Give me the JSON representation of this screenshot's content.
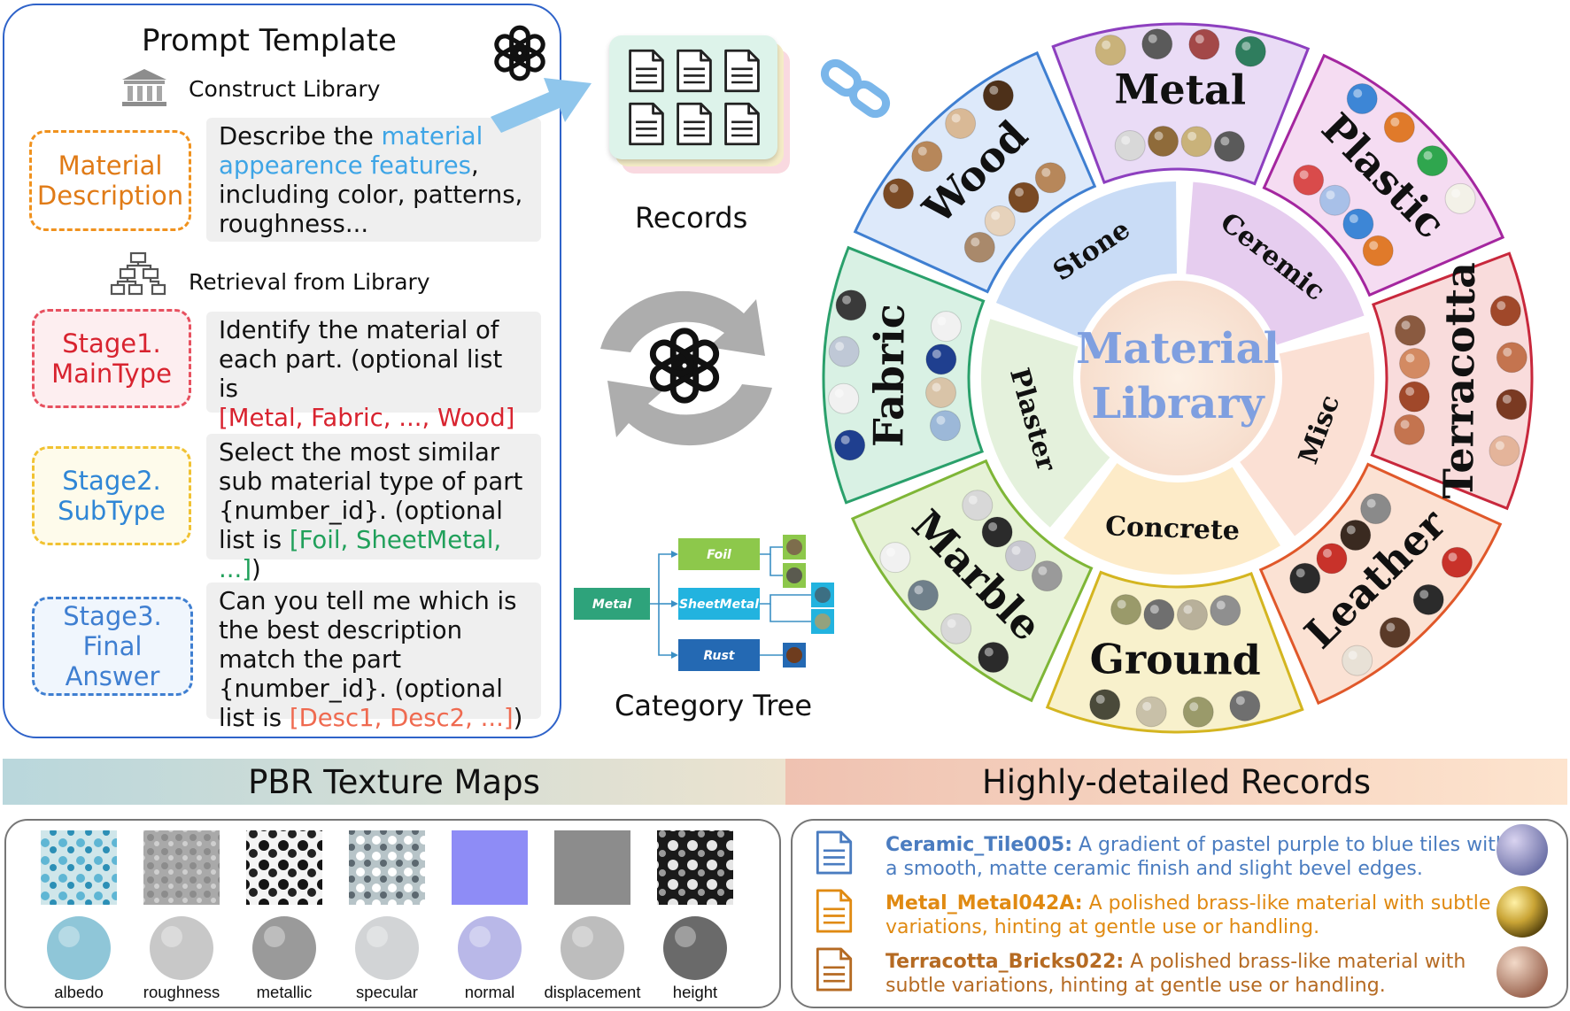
{
  "prompt_template": {
    "title": "Prompt Template",
    "construct_label": "Construct Library",
    "retrieval_label": "Retrieval from Library",
    "material_description": {
      "label": "Material\nDescription",
      "text_before": "Describe the ",
      "highlight": "material appearence features",
      "text_after": ", including color, patterns, roughness..."
    },
    "stage1": {
      "label": "Stage1.\nMainType",
      "text": "Identify the material of each part. (optional list is",
      "highlight": "[Metal, Fabric, ..., Wood]"
    },
    "stage2": {
      "label": "Stage2.\nSubType",
      "text": "Select the most similar sub material type of part {number_id}. (optional list is ",
      "highlight": "[Foil, SheetMetal, ...]",
      "text_after": ")"
    },
    "stage3": {
      "label": "Stage3.\nFinal Answer",
      "text": "Can you tell me which is the best description match the part {number_id}. (optional list is ",
      "highlight": "[Desc1, Desc2, ...]",
      "text_after": ")"
    }
  },
  "records": {
    "label": "Records"
  },
  "category_tree": {
    "label": "Category Tree",
    "root": "Metal",
    "children": [
      "Foil",
      "SheetMetal",
      "Rust"
    ]
  },
  "material_library": {
    "center_title_line1": "Material",
    "center_title_line2": "Library",
    "inner_categories": [
      "Stone",
      "Ceremic",
      "Misc",
      "Concrete",
      "Plaster"
    ],
    "outer_categories": [
      "Wood",
      "Metal",
      "Plastic",
      "Terracotta",
      "Leather",
      "Ground",
      "Marble",
      "Fabric"
    ]
  },
  "pbr": {
    "title": "PBR Texture Maps",
    "maps": [
      "albedo",
      "roughness",
      "metallic",
      "specular",
      "normal",
      "displacement",
      "height"
    ]
  },
  "detailed_records": {
    "title": "Highly-detailed Records",
    "items": [
      {
        "name": "Ceramic_Tile005:",
        "line1": "A gradient of pastel purple to blue tiles with",
        "line2": "a smooth, matte ceramic finish and slight bevel edges.",
        "color": "#4a7cc0"
      },
      {
        "name": "Metal_Metal042A:",
        "line1": "A polished brass-like material with subtle",
        "line2": "variations, hinting at gentle use or handling.",
        "color": "#e08a12"
      },
      {
        "name": "Terracotta_Bricks022:",
        "line1": "A polished brass-like material with",
        "line2": "subtle variations, hinting at gentle use or handling.",
        "color": "#b56a22"
      }
    ]
  },
  "colors": {
    "panel_border": "#2f63c9",
    "material_description": "#f0921e",
    "stage1": "#e7505f",
    "stage2": "#f1c232",
    "stage3": "#3f7fd1"
  }
}
